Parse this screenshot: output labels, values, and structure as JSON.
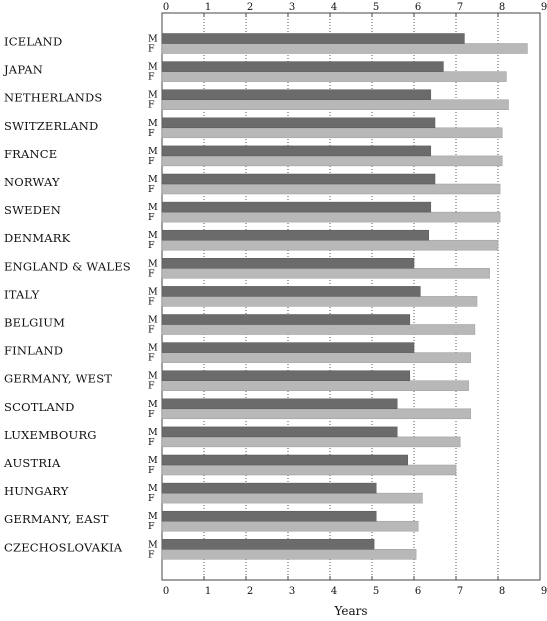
{
  "chart_data": {
    "type": "bar",
    "orientation": "horizontal",
    "title": "",
    "xlabel": "Years",
    "ylabel": "",
    "xlim": [
      0,
      9
    ],
    "xticks": [
      "0",
      "1",
      "2",
      "3",
      "4",
      "5",
      "6",
      "7",
      "8",
      "9"
    ],
    "grid": "vertical dotted",
    "sex_labels": {
      "male": "M",
      "female": "F"
    },
    "series_colors": {
      "M": "#6b6b6b",
      "F": "#b8b8b8"
    },
    "categories": [
      "ICELAND",
      "JAPAN",
      "NETHERLANDS",
      "SWITZERLAND",
      "FRANCE",
      "NORWAY",
      "SWEDEN",
      "DENMARK",
      "ENGLAND & WALES",
      "ITALY",
      "BELGIUM",
      "FINLAND",
      "GERMANY, WEST",
      "SCOTLAND",
      "LUXEMBOURG",
      "AUSTRIA",
      "HUNGARY",
      "GERMANY, EAST",
      "CZECHOSLOVAKIA"
    ],
    "series": [
      {
        "key": "M",
        "values": [
          7.2,
          6.7,
          6.4,
          6.5,
          6.4,
          6.5,
          6.4,
          6.35,
          6.0,
          6.15,
          5.9,
          6.0,
          5.9,
          5.6,
          5.6,
          5.85,
          5.1,
          5.1,
          5.05
        ]
      },
      {
        "key": "F",
        "values": [
          8.7,
          8.2,
          8.25,
          8.1,
          8.1,
          8.05,
          8.05,
          8.0,
          7.8,
          7.5,
          7.45,
          7.35,
          7.3,
          7.35,
          7.1,
          7.0,
          6.2,
          6.1,
          6.05
        ]
      }
    ]
  }
}
